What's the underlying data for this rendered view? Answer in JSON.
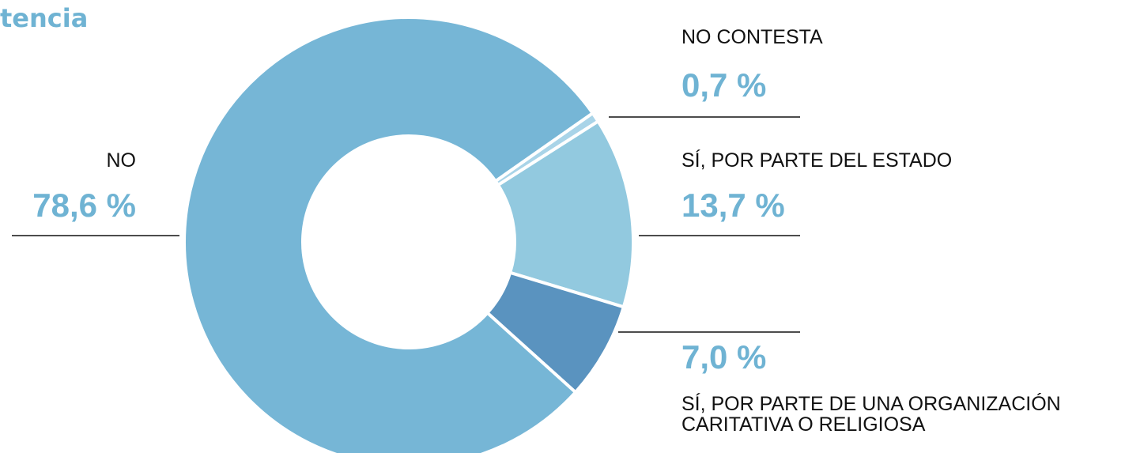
{
  "chart_data": {
    "type": "donut",
    "title": "tencia",
    "categories": [
      "NO CONTESTA",
      "SÍ, POR PARTE DEL ESTADO",
      "SÍ, POR PARTE DE UNA ORGANIZACIÓN\nCARITATIVA O RELIGIOSA",
      "NO"
    ],
    "values": [
      0.7,
      13.7,
      7.0,
      78.6
    ],
    "value_labels": [
      "0,7 %",
      "13,7 %",
      "7,0 %",
      "78,6 %"
    ],
    "colors": [
      "#a9d4e8",
      "#92c9df",
      "#5a93bf",
      "#76b6d6"
    ]
  }
}
